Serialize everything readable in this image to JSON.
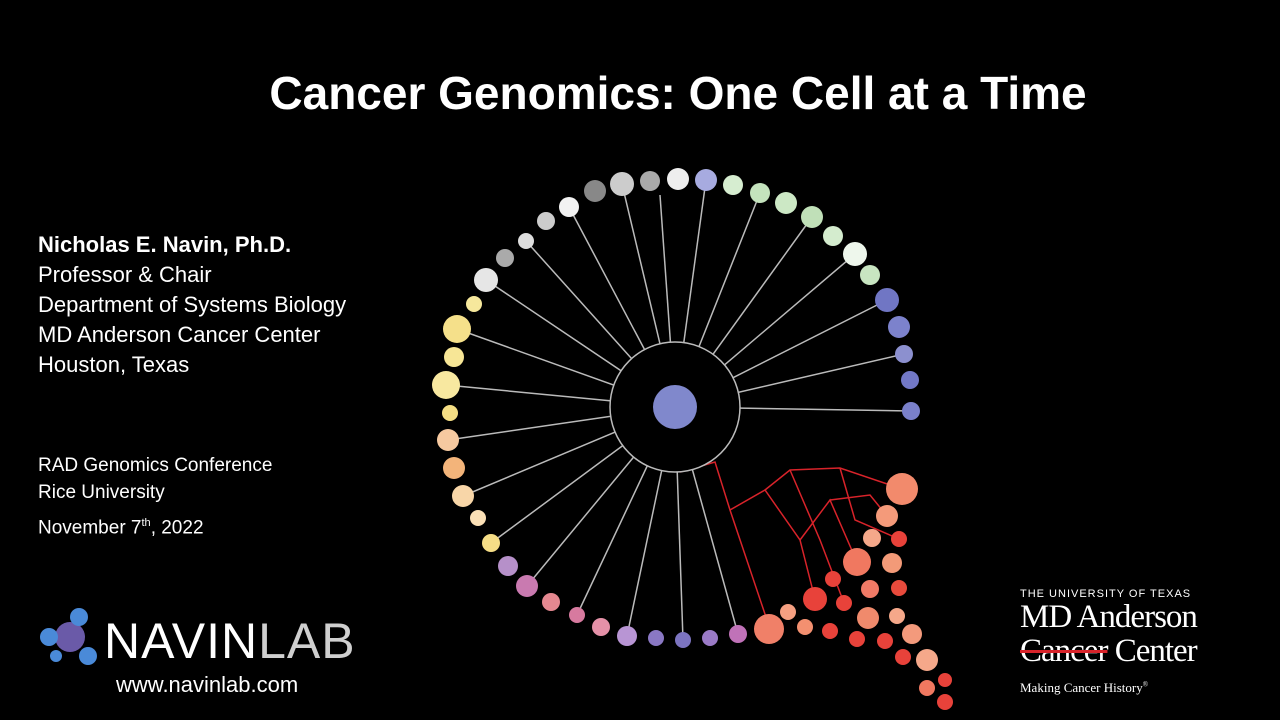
{
  "slide": {
    "title": "Cancer Genomics: One Cell at a Time",
    "presenter": {
      "name": "Nicholas E. Navin, Ph.D.",
      "lines": [
        "Professor & Chair",
        "Department of Systems Biology",
        "MD Anderson Cancer Center",
        "Houston, Texas"
      ]
    },
    "event": {
      "lines": [
        "RAD Genomics Conference",
        "Rice University"
      ],
      "date": {
        "before": "November 7",
        "sup": "th",
        "after": ", 2022"
      }
    },
    "lab_logo": {
      "bold": "NAVIN",
      "light": "LAB",
      "url": "www.navinlab.com"
    },
    "institution_logo": {
      "top": "THE UNIVERSITY OF TEXAS",
      "name": "MD Anderson",
      "struck": "Cancer",
      "center": "Center",
      "tagline": "Making Cancer History",
      "mark": "®"
    }
  }
}
